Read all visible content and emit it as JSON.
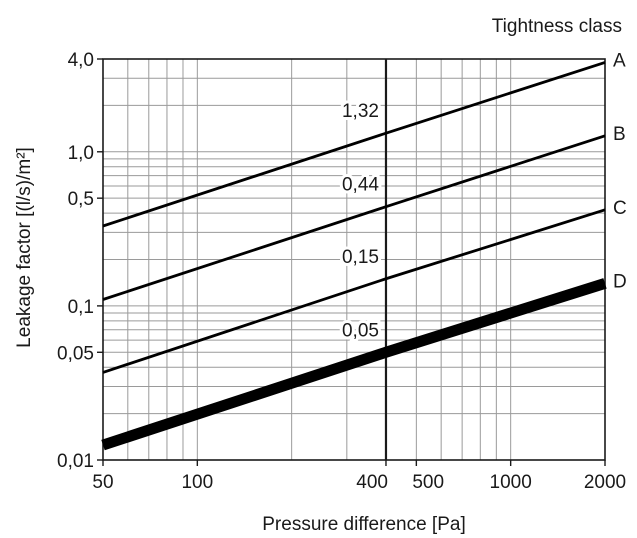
{
  "chart_data": {
    "type": "line",
    "xscale": "log",
    "yscale": "log",
    "xlim": [
      50,
      2000
    ],
    "ylim": [
      0.01,
      4.0
    ],
    "xlabel": "Pressure difference [Pa]",
    "ylabel": "Leakage factor [(l/s)/m²]",
    "legend_title": "Tightness class",
    "grid": true,
    "reference_x": 400,
    "x_ticks": [
      {
        "value": 50,
        "label": "50"
      },
      {
        "value": 100,
        "label": "100"
      },
      {
        "value": 400,
        "label": "400"
      },
      {
        "value": 500,
        "label": "500"
      },
      {
        "value": 1000,
        "label": "1000"
      },
      {
        "value": 2000,
        "label": "2000"
      }
    ],
    "y_ticks": [
      {
        "value": 0.01,
        "label": "0,01"
      },
      {
        "value": 0.05,
        "label": "0,05"
      },
      {
        "value": 0.1,
        "label": "0,1"
      },
      {
        "value": 0.5,
        "label": "0,5"
      },
      {
        "value": 1.0,
        "label": "1,0"
      },
      {
        "value": 4.0,
        "label": "4,0"
      }
    ],
    "series": [
      {
        "name": "A",
        "x": [
          50,
          400,
          2000
        ],
        "y": [
          0.33,
          1.32,
          3.8
        ],
        "heavy": false
      },
      {
        "name": "B",
        "x": [
          50,
          400,
          2000
        ],
        "y": [
          0.11,
          0.44,
          1.27
        ],
        "heavy": false
      },
      {
        "name": "C",
        "x": [
          50,
          400,
          2000
        ],
        "y": [
          0.037,
          0.15,
          0.42
        ],
        "heavy": false
      },
      {
        "name": "D",
        "x": [
          50,
          400,
          2000
        ],
        "y": [
          0.0125,
          0.05,
          0.14
        ],
        "heavy": true
      }
    ],
    "annotations": [
      {
        "label": "1,32",
        "x": 400,
        "y": 1.32
      },
      {
        "label": "0,44",
        "x": 400,
        "y": 0.44
      },
      {
        "label": "0,15",
        "x": 400,
        "y": 0.15
      },
      {
        "label": "0,05",
        "x": 400,
        "y": 0.05
      }
    ]
  }
}
